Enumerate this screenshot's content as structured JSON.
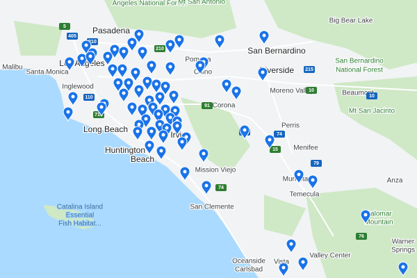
{
  "places": [
    "Angeles National Forest",
    "Mt San Antonio",
    "Big Bear Lake",
    "Pasadena",
    "Malibu",
    "Santa Monica",
    "Los Angeles",
    "San Bernardino",
    "Pomona",
    "Chino",
    "Riverside",
    "San Bernardino",
    "National Forest",
    "Inglewood",
    "Moreno Valley",
    "Beaumont",
    "Corona",
    "Mt San Jacinto",
    "Long Beach",
    "Perris",
    "Menifee",
    "Huntington",
    "Beach",
    "Irvine",
    "Mission Viejo",
    "Murrieta",
    "Temecula",
    "Anza",
    "San Clemente",
    "Catalina Island",
    "Essential",
    "Fish Habitat...",
    "Palomar",
    "Mountain",
    "Warner",
    "Springs",
    "Oceanside",
    "Vista",
    "Valley Center",
    "Carlsbad"
  ],
  "highways": [
    "405",
    "5",
    "210",
    "210",
    "110",
    "710",
    "10",
    "91",
    "15",
    "15",
    "74",
    "74",
    "79",
    "76",
    "215",
    "10"
  ]
}
